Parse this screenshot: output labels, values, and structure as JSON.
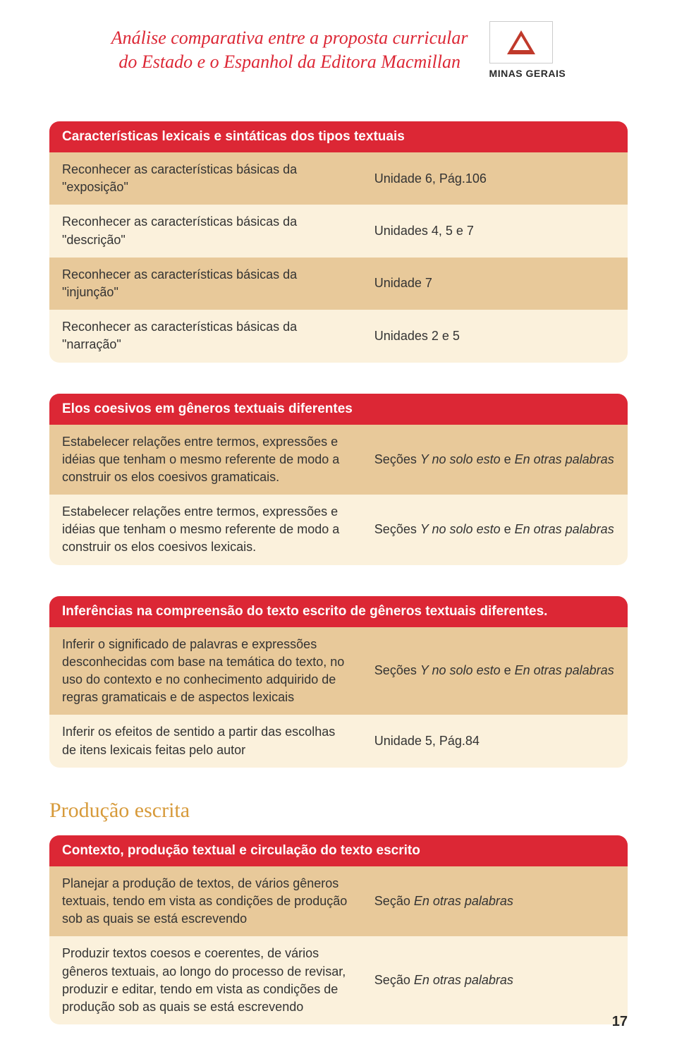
{
  "header": {
    "title_line1": "Análise comparativa entre a proposta curricular",
    "title_line2": "do Estado e o Espanhol da Editora Macmillan",
    "state": "MINAS GERAIS"
  },
  "table1": {
    "header": "Características lexicais e sintáticas dos tipos textuais",
    "rows": [
      {
        "left": "Reconhecer as características básicas da \"exposição\"",
        "right": "Unidade 6, Pág.106"
      },
      {
        "left": "Reconhecer as características básicas da \"descrição\"",
        "right": "Unidades 4, 5 e 7"
      },
      {
        "left": "Reconhecer as características básicas  da \"injunção\"",
        "right": "Unidade 7"
      },
      {
        "left": "Reconhecer as características básicas da \"narração\"",
        "right": "Unidades 2 e 5"
      }
    ]
  },
  "table2": {
    "header": "Elos coesivos em gêneros textuais diferentes",
    "rows": [
      {
        "left": "Estabelecer relações entre termos, expressões e idéias que tenham o mesmo referente de modo a construir os elos coesivos gramaticais.",
        "right_prefix": "Seções ",
        "right_em1": "Y no solo esto",
        "right_mid": " e ",
        "right_em2": "En otras palabras"
      },
      {
        "left": "Estabelecer relações entre termos, expressões e idéias que tenham o mesmo referente de modo a construir os elos coesivos lexicais.",
        "right_prefix": "Seções ",
        "right_em1": "Y no solo esto",
        "right_mid": " e ",
        "right_em2": "En otras palabras"
      }
    ]
  },
  "table3": {
    "header": "Inferências na compreensão do texto escrito de gêneros textuais diferentes.",
    "rows": [
      {
        "left": "Inferir o significado de palavras e expressões desconhecidas com base na temática do texto, no uso do contexto e no conhecimento adquirido de regras gramaticais e de aspectos lexicais",
        "right_prefix": "Seções ",
        "right_em1": "Y no solo esto",
        "right_mid": " e ",
        "right_em2": "En otras palabras"
      },
      {
        "left": "Inferir os efeitos de sentido a partir das escolhas de itens lexicais feitas pelo autor",
        "right_plain": "Unidade 5, Pág.84"
      }
    ]
  },
  "section_title": "Produção escrita",
  "table4": {
    "header": "Contexto, produção textual e circulação do texto escrito",
    "rows": [
      {
        "left": "Planejar a produção de textos, de vários gêneros textuais, tendo em vista as condições de produção sob as quais se está escrevendo",
        "right_prefix": "Seção ",
        "right_em1": "En otras palabras"
      },
      {
        "left": "Produzir textos coesos e coerentes, de vários gêneros textuais, ao longo do processo de revisar, produzir e editar, tendo em vista as condições de produção sob as quais se está escrevendo",
        "right_prefix": "Seção ",
        "right_em1": "En otras palabras"
      }
    ]
  },
  "page_number": "17",
  "colors": {
    "accent_red": "#dc2735",
    "row_dark": "#e8c99a",
    "row_light": "#fbf1dc",
    "section_gold": "#d79a3a"
  }
}
